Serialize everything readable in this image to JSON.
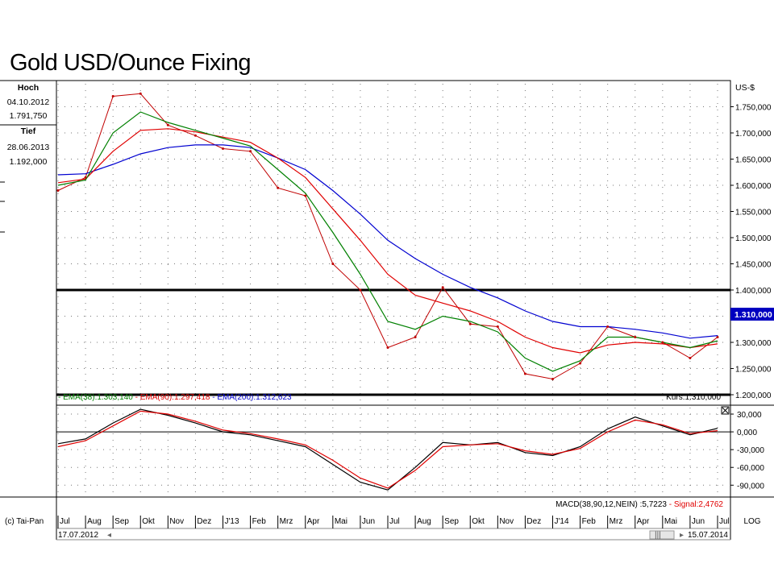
{
  "title": "Gold USD/Ounce Fixing",
  "info": {
    "high_label": "Hoch",
    "high_date": "04.10.2012",
    "high_value": "1.791,750",
    "low_label": "Tief",
    "low_date": "28.06.2013",
    "low_value": "1.192,000"
  },
  "currency_label": "US-$",
  "price_ticks": [
    "1.750,000",
    "1.700,000",
    "1.650,000",
    "1.600,000",
    "1.550,000",
    "1.500,000",
    "1.450,000",
    "1.400,000",
    "1.350,000",
    "1.300,000",
    "1.250,000",
    "1.200,000"
  ],
  "last_price_label": "1.310,000",
  "legend": {
    "ema38": "EMA(38):1.303,140",
    "ema90": "EMA(90):1.297,418",
    "ema200": "EMA(200):1.312,623",
    "kurs": "Kurs:1.310,000"
  },
  "macd_ticks": [
    "30,000",
    "0,000",
    "-30,000",
    "-60,000",
    "-90,000"
  ],
  "macd_legend": {
    "macd": "MACD(38,90,12,NEIN) :5,7223",
    "signal": "Signal:2,4762"
  },
  "copyright": "(c) Tai-Pan",
  "months": [
    "Jul",
    "Aug",
    "Sep",
    "Okt",
    "Nov",
    "Dez",
    "J'13",
    "Feb",
    "Mrz",
    "Apr",
    "Mai",
    "Jun",
    "Jul",
    "Aug",
    "Sep",
    "Okt",
    "Nov",
    "Dez",
    "J'14",
    "Feb",
    "Mrz",
    "Apr",
    "Mai",
    "Jun",
    "Jul"
  ],
  "log_label": "LOG",
  "start_date": "17.07.2012",
  "end_date": "15.07.2014",
  "colors": {
    "price": "#c00000",
    "ema38": "#008000",
    "ema90": "#e00000",
    "ema200": "#0000d0",
    "macd": "#000000",
    "signal": "#e00000"
  },
  "chart_data": [
    {
      "type": "line",
      "title": "Gold USD/Ounce Fixing",
      "ylabel": "US-$",
      "ylim": [
        1180,
        1800
      ],
      "grid": true,
      "horizontal_lines": [
        1400,
        1200
      ],
      "x": [
        "Jul",
        "Aug",
        "Sep",
        "Okt",
        "Nov",
        "Dez",
        "J'13",
        "Feb",
        "Mrz",
        "Apr",
        "Mai",
        "Jun",
        "Jul",
        "Aug",
        "Sep",
        "Okt",
        "Nov",
        "Dez",
        "J'14",
        "Feb",
        "Mrz",
        "Apr",
        "Mai",
        "Jun",
        "Jul"
      ],
      "series": [
        {
          "name": "Kurs",
          "values": [
            1590,
            1615,
            1770,
            1775,
            1715,
            1695,
            1670,
            1665,
            1595,
            1580,
            1450,
            1400,
            1290,
            1310,
            1405,
            1335,
            1330,
            1240,
            1230,
            1260,
            1330,
            1310,
            1300,
            1270,
            1310
          ]
        },
        {
          "name": "EMA(38)",
          "values": [
            1600,
            1610,
            1700,
            1740,
            1720,
            1705,
            1690,
            1675,
            1630,
            1585,
            1510,
            1430,
            1340,
            1325,
            1350,
            1340,
            1320,
            1270,
            1245,
            1265,
            1310,
            1310,
            1300,
            1290,
            1303
          ]
        },
        {
          "name": "EMA(90)",
          "values": [
            1605,
            1612,
            1665,
            1705,
            1708,
            1702,
            1692,
            1682,
            1652,
            1615,
            1555,
            1495,
            1430,
            1390,
            1375,
            1360,
            1340,
            1310,
            1290,
            1280,
            1295,
            1300,
            1297,
            1290,
            1297
          ]
        },
        {
          "name": "EMA(200)",
          "values": [
            1620,
            1622,
            1640,
            1660,
            1672,
            1677,
            1677,
            1672,
            1652,
            1630,
            1590,
            1545,
            1495,
            1460,
            1430,
            1405,
            1385,
            1360,
            1340,
            1330,
            1330,
            1325,
            1318,
            1308,
            1313
          ]
        }
      ]
    },
    {
      "type": "line",
      "ylim": [
        -110,
        45
      ],
      "grid": true,
      "x": [
        "Jul",
        "Aug",
        "Sep",
        "Okt",
        "Nov",
        "Dez",
        "J'13",
        "Feb",
        "Mrz",
        "Apr",
        "Mai",
        "Jun",
        "Jul",
        "Aug",
        "Sep",
        "Okt",
        "Nov",
        "Dez",
        "J'14",
        "Feb",
        "Mrz",
        "Apr",
        "Mai",
        "Jun",
        "Jul"
      ],
      "series": [
        {
          "name": "MACD(38,90,12,NEIN)",
          "values": [
            -20,
            -12,
            15,
            38,
            28,
            15,
            0,
            -5,
            -15,
            -25,
            -55,
            -85,
            -98,
            -60,
            -18,
            -22,
            -18,
            -35,
            -40,
            -25,
            5,
            25,
            10,
            -5,
            6
          ]
        },
        {
          "name": "Signal",
          "values": [
            -25,
            -15,
            10,
            35,
            30,
            18,
            3,
            -3,
            -12,
            -22,
            -48,
            -78,
            -95,
            -65,
            -25,
            -22,
            -20,
            -32,
            -38,
            -28,
            0,
            20,
            12,
            -3,
            2
          ]
        }
      ]
    }
  ]
}
